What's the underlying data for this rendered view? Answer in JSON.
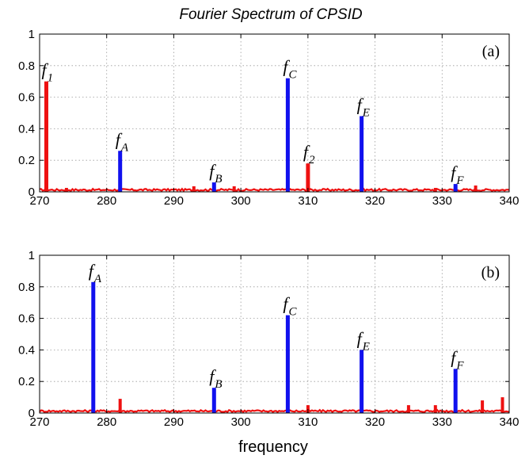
{
  "figure": {
    "title": "Fourier Spectrum of CPSID",
    "xlabel": "frequency"
  },
  "colors": {
    "peak_blue": "#1111ee",
    "peak_red": "#ee1111",
    "baseline_red": "#ee1111"
  },
  "chart_data": [
    {
      "type": "bar",
      "panel_label": "(a)",
      "xlim": [
        270,
        340
      ],
      "ylim": [
        0,
        1
      ],
      "xticks": [
        270,
        280,
        290,
        300,
        310,
        320,
        330,
        340
      ],
      "yticks": [
        0,
        0.2,
        0.4,
        0.6,
        0.8,
        1
      ],
      "grid": true,
      "series": [
        {
          "color": "blue",
          "points": [
            {
              "x": 282,
              "y": 0.26,
              "label": "f",
              "sub": "A"
            },
            {
              "x": 296,
              "y": 0.06,
              "label": "f",
              "sub": "B"
            },
            {
              "x": 307,
              "y": 0.72,
              "label": "f",
              "sub": "C"
            },
            {
              "x": 318,
              "y": 0.48,
              "label": "f",
              "sub": "E"
            },
            {
              "x": 332,
              "y": 0.05,
              "label": "f",
              "sub": "F"
            }
          ]
        },
        {
          "color": "red",
          "points": [
            {
              "x": 271,
              "y": 0.7,
              "label": "f",
              "sub": "1"
            },
            {
              "x": 310,
              "y": 0.18,
              "label": "f",
              "sub": "2"
            },
            {
              "x": 274,
              "y": 0.025
            },
            {
              "x": 293,
              "y": 0.035
            },
            {
              "x": 299,
              "y": 0.035
            },
            {
              "x": 307,
              "y": 0.06
            },
            {
              "x": 329,
              "y": 0.025
            },
            {
              "x": 335,
              "y": 0.04
            }
          ]
        }
      ]
    },
    {
      "type": "bar",
      "panel_label": "(b)",
      "xlim": [
        270,
        340
      ],
      "ylim": [
        0,
        1
      ],
      "xticks": [
        270,
        280,
        290,
        300,
        310,
        320,
        330,
        340
      ],
      "yticks": [
        0,
        0.2,
        0.4,
        0.6,
        0.8,
        1
      ],
      "grid": true,
      "series": [
        {
          "color": "blue",
          "points": [
            {
              "x": 278,
              "y": 0.83,
              "label": "f",
              "sub": "A"
            },
            {
              "x": 296,
              "y": 0.16,
              "label": "f",
              "sub": "B"
            },
            {
              "x": 307,
              "y": 0.62,
              "label": "f",
              "sub": "C"
            },
            {
              "x": 318,
              "y": 0.4,
              "label": "f",
              "sub": "E"
            },
            {
              "x": 332,
              "y": 0.28,
              "label": "f",
              "sub": "F"
            }
          ]
        },
        {
          "color": "red",
          "points": [
            {
              "x": 282,
              "y": 0.09
            },
            {
              "x": 307,
              "y": 0.11
            },
            {
              "x": 310,
              "y": 0.05
            },
            {
              "x": 325,
              "y": 0.05
            },
            {
              "x": 329,
              "y": 0.05
            },
            {
              "x": 336,
              "y": 0.08
            },
            {
              "x": 339,
              "y": 0.1
            }
          ]
        }
      ]
    }
  ]
}
